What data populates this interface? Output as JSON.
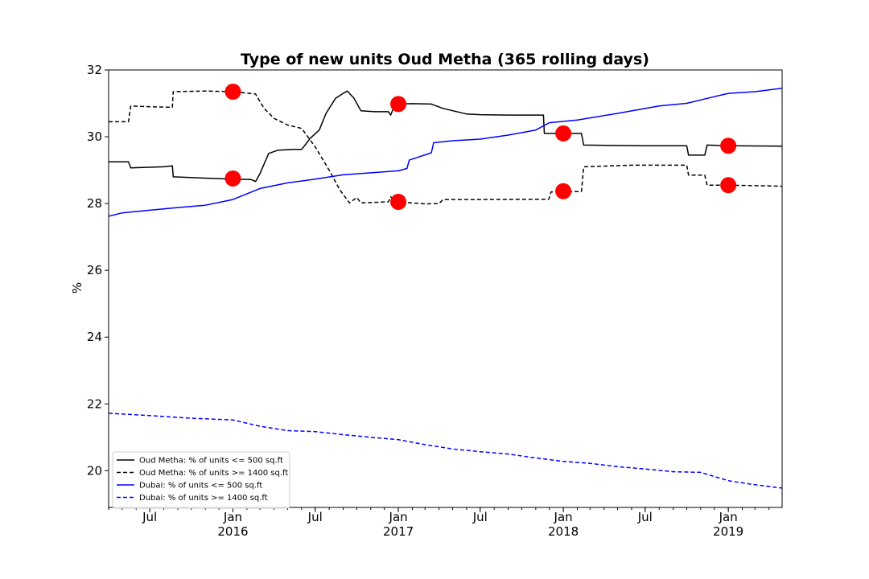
{
  "chart_data": {
    "type": "line",
    "title": "Type of new units Oud Metha (365 rolling days)",
    "xlabel": "",
    "ylabel": "%",
    "xlim": [
      "2015-04-01",
      "2019-04-30"
    ],
    "ylim": [
      18.9,
      32.0
    ],
    "y_ticks": [
      20,
      22,
      24,
      26,
      28,
      30,
      32
    ],
    "x_ticks": [
      {
        "date": "2015-07-01",
        "label": "Jul",
        "sublabel": ""
      },
      {
        "date": "2016-01-01",
        "label": "Jan",
        "sublabel": "2016"
      },
      {
        "date": "2016-07-01",
        "label": "Jul",
        "sublabel": ""
      },
      {
        "date": "2017-01-01",
        "label": "Jan",
        "sublabel": "2017"
      },
      {
        "date": "2017-07-01",
        "label": "Jul",
        "sublabel": ""
      },
      {
        "date": "2018-01-01",
        "label": "Jan",
        "sublabel": "2018"
      },
      {
        "date": "2018-07-01",
        "label": "Jul",
        "sublabel": ""
      },
      {
        "date": "2019-01-01",
        "label": "Jan",
        "sublabel": "2019"
      }
    ],
    "grid": false,
    "legend_position": "lower-left",
    "series": [
      {
        "name": "Oud Metha: % of units <= 500 sq.ft",
        "color": "#000000",
        "dash": "solid",
        "points": [
          [
            "2015-04-01",
            29.25
          ],
          [
            "2015-05-15",
            29.25
          ],
          [
            "2015-05-20",
            29.07
          ],
          [
            "2015-08-01",
            29.1
          ],
          [
            "2015-08-20",
            29.13
          ],
          [
            "2015-08-22",
            28.8
          ],
          [
            "2015-11-01",
            28.76
          ],
          [
            "2016-01-01",
            28.73
          ],
          [
            "2016-02-10",
            28.72
          ],
          [
            "2016-02-20",
            28.66
          ],
          [
            "2016-03-01",
            28.9
          ],
          [
            "2016-03-20",
            29.5
          ],
          [
            "2016-04-10",
            29.6
          ],
          [
            "2016-05-15",
            29.62
          ],
          [
            "2016-06-01",
            29.62
          ],
          [
            "2016-06-20",
            29.95
          ],
          [
            "2016-07-10",
            30.2
          ],
          [
            "2016-07-25",
            30.7
          ],
          [
            "2016-08-15",
            31.15
          ],
          [
            "2016-09-01",
            31.3
          ],
          [
            "2016-09-10",
            31.37
          ],
          [
            "2016-09-25",
            31.15
          ],
          [
            "2016-10-10",
            30.78
          ],
          [
            "2016-11-10",
            30.75
          ],
          [
            "2016-12-10",
            30.75
          ],
          [
            "2016-12-15",
            30.65
          ],
          [
            "2016-12-25",
            30.98
          ],
          [
            "2017-02-01",
            30.99
          ],
          [
            "2017-03-15",
            30.98
          ],
          [
            "2017-03-20",
            30.95
          ],
          [
            "2017-04-10",
            30.85
          ],
          [
            "2017-06-01",
            30.68
          ],
          [
            "2017-07-01",
            30.66
          ],
          [
            "2017-09-01",
            30.65
          ],
          [
            "2017-11-18",
            30.65
          ],
          [
            "2017-11-20",
            30.1
          ],
          [
            "2018-02-10",
            30.1
          ],
          [
            "2018-02-15",
            29.75
          ],
          [
            "2018-07-01",
            29.73
          ],
          [
            "2018-10-01",
            29.73
          ],
          [
            "2018-10-05",
            29.45
          ],
          [
            "2018-11-10",
            29.45
          ],
          [
            "2018-11-15",
            29.75
          ],
          [
            "2019-01-01",
            29.73
          ],
          [
            "2019-04-30",
            29.72
          ]
        ],
        "markers": [
          [
            "2016-01-01",
            28.75
          ],
          [
            "2017-01-01",
            30.98
          ],
          [
            "2018-01-01",
            30.1
          ],
          [
            "2019-01-01",
            29.73
          ]
        ]
      },
      {
        "name": "Oud Metha: % of units >= 1400 sq.ft",
        "color": "#000000",
        "dash": "dashed",
        "points": [
          [
            "2015-04-01",
            30.45
          ],
          [
            "2015-05-15",
            30.45
          ],
          [
            "2015-05-20",
            30.92
          ],
          [
            "2015-07-01",
            30.9
          ],
          [
            "2015-08-20",
            30.88
          ],
          [
            "2015-08-22",
            31.35
          ],
          [
            "2015-11-01",
            31.37
          ],
          [
            "2016-01-01",
            31.35
          ],
          [
            "2016-02-20",
            31.28
          ],
          [
            "2016-03-10",
            30.85
          ],
          [
            "2016-04-01",
            30.55
          ],
          [
            "2016-05-01",
            30.35
          ],
          [
            "2016-06-01",
            30.25
          ],
          [
            "2016-07-01",
            29.7
          ],
          [
            "2016-08-01",
            29.0
          ],
          [
            "2016-08-25",
            28.4
          ],
          [
            "2016-09-15",
            28.02
          ],
          [
            "2016-10-01",
            28.18
          ],
          [
            "2016-10-10",
            28.02
          ],
          [
            "2016-12-10",
            28.05
          ],
          [
            "2016-12-15",
            28.2
          ],
          [
            "2016-12-28",
            28.05
          ],
          [
            "2017-03-01",
            27.99
          ],
          [
            "2017-04-01",
            28.0
          ],
          [
            "2017-04-10",
            28.12
          ],
          [
            "2017-07-01",
            28.12
          ],
          [
            "2017-11-30",
            28.13
          ],
          [
            "2017-12-05",
            28.35
          ],
          [
            "2018-02-10",
            28.36
          ],
          [
            "2018-02-15",
            29.1
          ],
          [
            "2018-06-01",
            29.15
          ],
          [
            "2018-10-01",
            29.15
          ],
          [
            "2018-10-05",
            28.85
          ],
          [
            "2018-11-10",
            28.85
          ],
          [
            "2018-11-15",
            28.55
          ],
          [
            "2019-01-01",
            28.55
          ],
          [
            "2019-04-30",
            28.52
          ]
        ],
        "markers": [
          [
            "2016-01-01",
            31.35
          ],
          [
            "2017-01-01",
            28.05
          ],
          [
            "2018-01-01",
            28.37
          ],
          [
            "2019-01-01",
            28.55
          ]
        ]
      },
      {
        "name": "Dubai: % of units <= 500 sq.ft",
        "color": "#0000ff",
        "dash": "solid",
        "points": [
          [
            "2015-04-01",
            27.62
          ],
          [
            "2015-05-01",
            27.72
          ],
          [
            "2015-07-01",
            27.8
          ],
          [
            "2015-09-01",
            27.88
          ],
          [
            "2015-11-01",
            27.95
          ],
          [
            "2016-01-01",
            28.12
          ],
          [
            "2016-03-01",
            28.45
          ],
          [
            "2016-05-01",
            28.62
          ],
          [
            "2016-07-01",
            28.73
          ],
          [
            "2016-09-01",
            28.86
          ],
          [
            "2016-11-01",
            28.92
          ],
          [
            "2017-01-01",
            28.98
          ],
          [
            "2017-01-20",
            29.05
          ],
          [
            "2017-01-25",
            29.3
          ],
          [
            "2017-03-15",
            29.52
          ],
          [
            "2017-03-20",
            29.82
          ],
          [
            "2017-05-01",
            29.88
          ],
          [
            "2017-07-01",
            29.93
          ],
          [
            "2017-09-01",
            30.05
          ],
          [
            "2017-11-01",
            30.2
          ],
          [
            "2017-12-01",
            30.42
          ],
          [
            "2018-02-01",
            30.5
          ],
          [
            "2018-05-01",
            30.7
          ],
          [
            "2018-08-01",
            30.92
          ],
          [
            "2018-10-01",
            31.0
          ],
          [
            "2018-12-01",
            31.2
          ],
          [
            "2019-01-01",
            31.3
          ],
          [
            "2019-03-01",
            31.35
          ],
          [
            "2019-04-30",
            31.45
          ]
        ]
      },
      {
        "name": "Dubai: % of units >= 1400 sq.ft",
        "color": "#0000ff",
        "dash": "dashed",
        "points": [
          [
            "2015-04-01",
            21.72
          ],
          [
            "2015-07-01",
            21.65
          ],
          [
            "2015-10-01",
            21.57
          ],
          [
            "2016-01-01",
            21.52
          ],
          [
            "2016-03-01",
            21.33
          ],
          [
            "2016-05-01",
            21.2
          ],
          [
            "2016-07-01",
            21.17
          ],
          [
            "2016-09-01",
            21.08
          ],
          [
            "2016-11-01",
            21.0
          ],
          [
            "2017-01-01",
            20.93
          ],
          [
            "2017-03-01",
            20.78
          ],
          [
            "2017-05-01",
            20.65
          ],
          [
            "2017-07-01",
            20.57
          ],
          [
            "2017-09-01",
            20.5
          ],
          [
            "2017-11-01",
            20.38
          ],
          [
            "2018-01-01",
            20.28
          ],
          [
            "2018-03-01",
            20.22
          ],
          [
            "2018-05-01",
            20.12
          ],
          [
            "2018-07-01",
            20.05
          ],
          [
            "2018-09-01",
            19.97
          ],
          [
            "2018-11-01",
            19.95
          ],
          [
            "2019-01-01",
            19.7
          ],
          [
            "2019-03-01",
            19.58
          ],
          [
            "2019-04-30",
            19.48
          ]
        ]
      }
    ]
  }
}
